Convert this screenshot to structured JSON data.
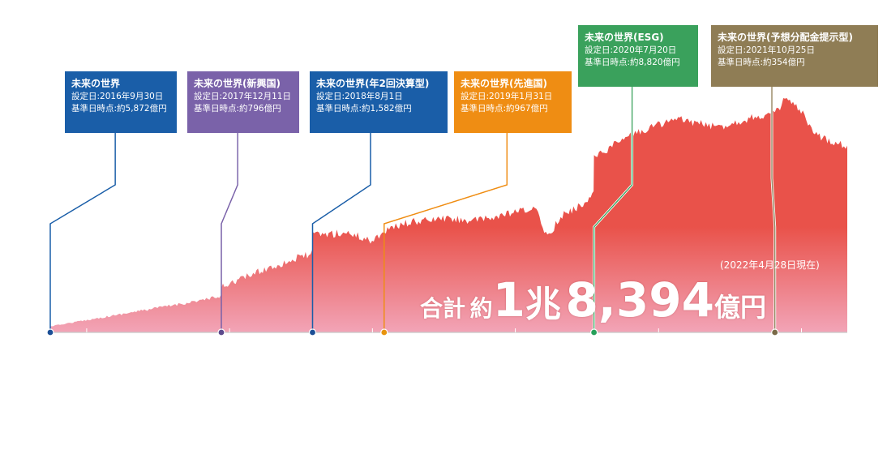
{
  "chart_data": {
    "type": "area",
    "x_range": [
      "2016-09-30",
      "2022-04-28"
    ],
    "y_range": [
      0,
      2.3
    ],
    "y_unit": "兆円",
    "x": [
      "2016-09-30",
      "2017-03-31",
      "2017-12-10",
      "2017-12-11",
      "2018-03-31",
      "2018-07-31",
      "2018-08-01",
      "2018-10-31",
      "2018-12-31",
      "2019-01-31",
      "2019-03-31",
      "2019-06-30",
      "2019-09-30",
      "2019-12-31",
      "2020-02-20",
      "2020-03-23",
      "2020-04-30",
      "2020-06-30",
      "2020-07-19",
      "2020-07-20",
      "2020-09-30",
      "2020-12-31",
      "2021-02-20",
      "2021-05-31",
      "2021-08-31",
      "2021-10-25",
      "2021-11-20",
      "2021-12-31",
      "2022-01-31",
      "2022-03-08",
      "2022-04-28"
    ],
    "values": [
      0.06,
      0.18,
      0.35,
      0.45,
      0.62,
      0.78,
      0.96,
      0.98,
      0.9,
      1.0,
      1.08,
      1.12,
      1.1,
      1.18,
      1.22,
      0.95,
      1.15,
      1.28,
      1.42,
      1.72,
      1.9,
      2.05,
      2.1,
      2.02,
      2.12,
      2.15,
      2.3,
      2.18,
      1.95,
      1.9,
      1.84
    ],
    "total": {
      "prefix": "合計",
      "approx": "約",
      "trillion": "1",
      "trillion_unit": "兆",
      "amount": "8,394",
      "amount_unit": "億円",
      "as_of": "(2022年4月28日現在)"
    },
    "annotations": [
      {
        "name": "未来の世界",
        "setup": "設定日:2016年9月30日",
        "assets": "基準日時点:約5,872億円",
        "date": "2016-09-30",
        "color": "#1a5ea8",
        "dot_color": "#1c4f96"
      },
      {
        "name": "未来の世界(新興国)",
        "setup": "設定日:2017年12月11日",
        "assets": "基準日時点:約796億円",
        "date": "2017-12-11",
        "color": "#7a62a9",
        "dot_color": "#5c4a8c"
      },
      {
        "name": "未来の世界(年2回決算型)",
        "setup": "設定日:2018年8月1日",
        "assets": "基準日時点:約1,582億円",
        "date": "2018-08-01",
        "color": "#1a5ea8",
        "dot_color": "#1c4f96"
      },
      {
        "name": "未来の世界(先進国)",
        "setup": "設定日:2019年1月31日",
        "assets": "基準日時点:約967億円",
        "date": "2019-01-31",
        "color": "#ef8d13",
        "dot_color": "#e8940e"
      },
      {
        "name": "未来の世界(ESG)",
        "setup": "設定日:2020年7月20日",
        "assets": "基準日時点:約8,820億円",
        "date": "2020-07-20",
        "color": "#3aa15c",
        "dot_color": "#27a05a"
      },
      {
        "name": "未来の世界(予想分配金提示型)",
        "setup": "設定日:2021年10月25日",
        "assets": "基準日時点:約354億円",
        "date": "2021-10-25",
        "color": "#8f7d55",
        "dot_color": "#7a6a48"
      }
    ],
    "fill_top_color": "#e9524a",
    "fill_bottom_color": "#f2a4b7",
    "baseline_color": "#c8c8c8"
  }
}
